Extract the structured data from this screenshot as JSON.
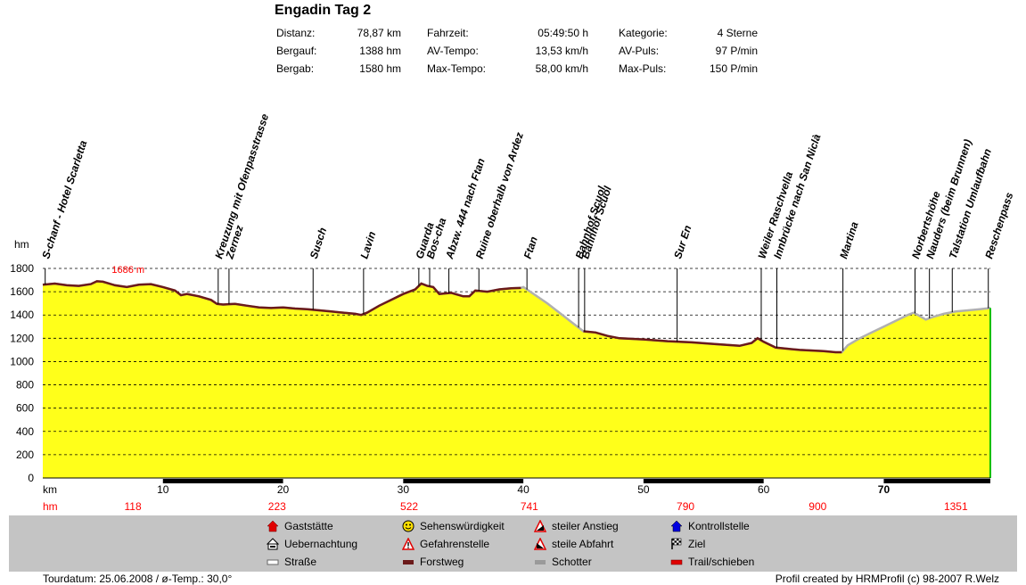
{
  "header": {
    "title": "Engadin Tag 2",
    "stats": [
      {
        "label": "Distanz:",
        "value": "78,87 km"
      },
      {
        "label": "Bergauf:",
        "value": "1388 hm"
      },
      {
        "label": "Bergab:",
        "value": "1580 hm"
      },
      {
        "label": "Fahrzeit:",
        "value": "05:49:50 h"
      },
      {
        "label": "AV-Tempo:",
        "value": "13,53 km/h"
      },
      {
        "label": "Max-Tempo:",
        "value": "58,00 km/h"
      },
      {
        "label": "Kategorie:",
        "value": "4 Sterne"
      },
      {
        "label": "AV-Puls:",
        "value": "97 P/min"
      },
      {
        "label": "Max-Puls:",
        "value": "150 P/min"
      }
    ]
  },
  "chart_data": {
    "type": "area",
    "xlabel": "km",
    "ylabel": "hm",
    "xlim": [
      0,
      78.87
    ],
    "ylim": [
      0,
      1800
    ],
    "yticks": [
      0,
      200,
      400,
      600,
      800,
      1000,
      1200,
      1400,
      1600,
      1800
    ],
    "xticks": [
      10,
      20,
      30,
      40,
      50,
      60,
      70
    ],
    "bold_xtick": 70,
    "grid": true,
    "max_label": "1686 m",
    "max_point": {
      "x": 5,
      "y": 1686
    },
    "hm_row_label": "hm",
    "hm_row": [
      {
        "x": 7.5,
        "value": "118"
      },
      {
        "x": 19.5,
        "value": "223"
      },
      {
        "x": 30.5,
        "value": "522"
      },
      {
        "x": 40.5,
        "value": "741"
      },
      {
        "x": 53.5,
        "value": "790"
      },
      {
        "x": 64.5,
        "value": "900"
      },
      {
        "x": 76,
        "value": "1351"
      }
    ],
    "profile": [
      [
        0,
        1660
      ],
      [
        1,
        1670
      ],
      [
        2,
        1655
      ],
      [
        3,
        1650
      ],
      [
        4,
        1665
      ],
      [
        4.5,
        1690
      ],
      [
        5,
        1686
      ],
      [
        6,
        1655
      ],
      [
        7,
        1640
      ],
      [
        8,
        1660
      ],
      [
        9,
        1665
      ],
      [
        10,
        1640
      ],
      [
        11,
        1610
      ],
      [
        11.5,
        1570
      ],
      [
        12,
        1580
      ],
      [
        13,
        1560
      ],
      [
        14,
        1530
      ],
      [
        14.5,
        1495
      ],
      [
        15,
        1490
      ],
      [
        16,
        1495
      ],
      [
        17,
        1480
      ],
      [
        18,
        1465
      ],
      [
        19,
        1460
      ],
      [
        20,
        1465
      ],
      [
        21,
        1455
      ],
      [
        22,
        1450
      ],
      [
        23,
        1440
      ],
      [
        24,
        1430
      ],
      [
        25,
        1420
      ],
      [
        26,
        1410
      ],
      [
        26.5,
        1400
      ],
      [
        27,
        1420
      ],
      [
        28,
        1480
      ],
      [
        29,
        1530
      ],
      [
        30,
        1580
      ],
      [
        31,
        1620
      ],
      [
        31.5,
        1670
      ],
      [
        32,
        1650
      ],
      [
        32.5,
        1640
      ],
      [
        33,
        1580
      ],
      [
        34,
        1590
      ],
      [
        35,
        1560
      ],
      [
        35.5,
        1560
      ],
      [
        36,
        1610
      ],
      [
        37,
        1600
      ],
      [
        38,
        1620
      ],
      [
        39,
        1630
      ],
      [
        39.8,
        1632
      ],
      [
        40,
        1640
      ],
      [
        41,
        1570
      ],
      [
        42,
        1500
      ],
      [
        43,
        1420
      ],
      [
        44,
        1340
      ],
      [
        45,
        1260
      ],
      [
        46,
        1250
      ],
      [
        47,
        1220
      ],
      [
        48,
        1200
      ],
      [
        50,
        1190
      ],
      [
        52,
        1175
      ],
      [
        54,
        1165
      ],
      [
        56,
        1150
      ],
      [
        58,
        1135
      ],
      [
        59,
        1160
      ],
      [
        59.5,
        1200
      ],
      [
        60,
        1170
      ],
      [
        61,
        1120
      ],
      [
        63,
        1100
      ],
      [
        65,
        1090
      ],
      [
        66,
        1080
      ],
      [
        66.5,
        1080
      ],
      [
        67,
        1140
      ],
      [
        68,
        1200
      ],
      [
        69,
        1250
      ],
      [
        70,
        1300
      ],
      [
        71,
        1350
      ],
      [
        72,
        1400
      ],
      [
        72.5,
        1420
      ],
      [
        73,
        1390
      ],
      [
        73.5,
        1360
      ],
      [
        74,
        1380
      ],
      [
        75,
        1410
      ],
      [
        76,
        1430
      ],
      [
        77,
        1440
      ],
      [
        78,
        1450
      ],
      [
        78.87,
        1460
      ]
    ],
    "profile_dark_ranges": [
      [
        0,
        39.8
      ],
      [
        44.5,
        66.5
      ]
    ],
    "waypoints": [
      {
        "name": "S-chanf - Hotel Scarletta",
        "x": 0.2
      },
      {
        "name": "Kreuzung mit Ofenpasstrasse",
        "x": 14.6
      },
      {
        "name": "Zernez",
        "x": 15.5
      },
      {
        "name": "Susch",
        "x": 22.5
      },
      {
        "name": "Lavin",
        "x": 26.7
      },
      {
        "name": "Guarda",
        "x": 31.3
      },
      {
        "name": "Bos-cha",
        "x": 32.2
      },
      {
        "name": "Abzw. 444 nach Ftan",
        "x": 33.8
      },
      {
        "name": "Ruine oberhalb von Ardez",
        "x": 36.3
      },
      {
        "name": "Ftan",
        "x": 40.3
      },
      {
        "name": "Bahnhof Scuol",
        "x": 44.6
      },
      {
        "name": "Bahnhof Scuol",
        "x": 45.1
      },
      {
        "name": "Sur En",
        "x": 52.8
      },
      {
        "name": "Weiler Raschvella",
        "x": 59.8
      },
      {
        "name": "Innbrücke nach San Niclà",
        "x": 61.1
      },
      {
        "name": "Martina",
        "x": 66.6
      },
      {
        "name": "Norbertshöhe",
        "x": 72.6
      },
      {
        "name": "Nauders (beim Brunnen)",
        "x": 73.8
      },
      {
        "name": "Talstation Umlaufbahn",
        "x": 75.7
      },
      {
        "name": "Reschenpass",
        "x": 78.7
      }
    ],
    "track_bar": [
      {
        "from": 10,
        "to": 20
      },
      {
        "from": 30,
        "to": 40
      },
      {
        "from": 50,
        "to": 60
      },
      {
        "from": 70,
        "to": 78.87
      }
    ],
    "colors": {
      "fill": "#ffff1a",
      "road": "#b0b0b0",
      "trail": "#6b1a1a",
      "red": "#ff0000",
      "green": "#00c000"
    }
  },
  "legend": {
    "items": [
      {
        "name": "house-icon",
        "label": "Gaststätte"
      },
      {
        "name": "bed-icon",
        "label": "Uebernachtung"
      },
      {
        "name": "road-icon",
        "label": "Straße"
      },
      {
        "name": "smiley-icon",
        "label": "Sehenswürdigkeit"
      },
      {
        "name": "warning-icon",
        "label": "Gefahrenstelle"
      },
      {
        "name": "forest-road-icon",
        "label": "Forstweg"
      },
      {
        "name": "steep-up-icon",
        "label": "steiler Anstieg"
      },
      {
        "name": "steep-down-icon",
        "label": "steile Abfahrt"
      },
      {
        "name": "gravel-icon",
        "label": "Schotter"
      },
      {
        "name": "checkpoint-icon",
        "label": "Kontrollstelle"
      },
      {
        "name": "finish-flag-icon",
        "label": "Ziel"
      },
      {
        "name": "trail-icon",
        "label": "Trail/schieben"
      }
    ]
  },
  "footer": {
    "left": "Tourdatum: 25.06.2008  /  ø-Temp.: 30,0°",
    "right": "Profil created by HRMProfil (c) 98-2007 R.Welz"
  }
}
